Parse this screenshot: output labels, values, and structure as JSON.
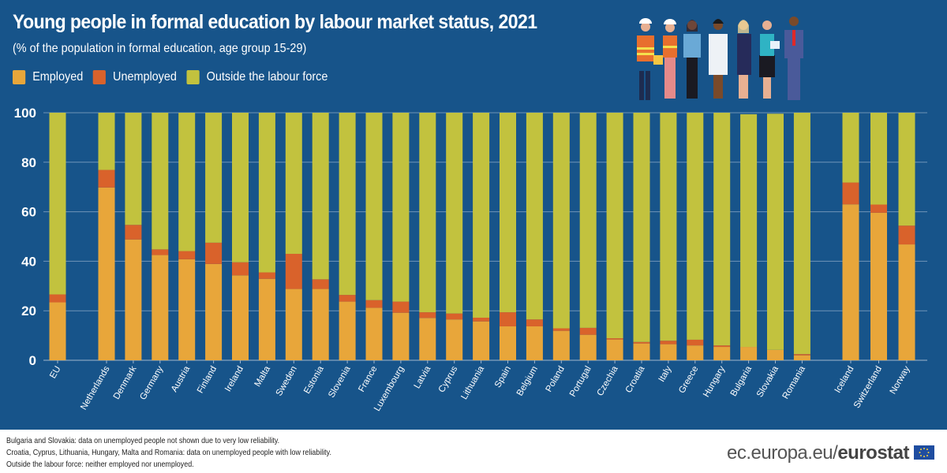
{
  "title": "Young people in formal education by labour market status, 2021",
  "subtitle": "(% of the population in formal education, age group 15-29)",
  "footer": {
    "notes": [
      "Bulgaria and Slovakia: data on unemployed people not shown due to very low reliability.",
      "Croatia, Cyprus, Lithuania, Hungary, Malta and Romania: data on unemployed people with low reliability.",
      "Outside the labour force: neither employed nor unemployed."
    ],
    "brand_prefix": "ec.europa.eu/",
    "brand_name": "eurostat"
  },
  "colors": {
    "employed": "#e8a63a",
    "unemployed": "#d9622b",
    "outside": "#c2c23e",
    "background": "#17548a",
    "grid": "#6f93b7"
  },
  "chart_data": {
    "type": "bar",
    "stacked": true,
    "title": "Young people in formal education by labour market status, 2021",
    "subtitle": "(% of the population in formal education, age group 15-29)",
    "ylim": [
      0,
      100
    ],
    "yticks": [
      0,
      20,
      40,
      60,
      80,
      100
    ],
    "grid": true,
    "legend_position": "top-left",
    "groups": [
      [
        "EU"
      ],
      [
        "Netherlands",
        "Denmark",
        "Germany",
        "Austria",
        "Finland",
        "Ireland",
        "Malta",
        "Sweden",
        "Estonia",
        "Slovenia",
        "France",
        "Luxembourg",
        "Latvia",
        "Cyprus",
        "Lithuania",
        "Spain",
        "Belgium",
        "Poland",
        "Portugal",
        "Czechia",
        "Croatia",
        "Italy",
        "Greece",
        "Hungary",
        "Bulgaria",
        "Slovakia",
        "Romania"
      ],
      [
        "Iceland",
        "Switzerland",
        "Norway"
      ]
    ],
    "categories": [
      "EU",
      "Netherlands",
      "Denmark",
      "Germany",
      "Austria",
      "Finland",
      "Ireland",
      "Malta",
      "Sweden",
      "Estonia",
      "Slovenia",
      "France",
      "Luxembourg",
      "Latvia",
      "Cyprus",
      "Lithuania",
      "Spain",
      "Belgium",
      "Poland",
      "Portugal",
      "Czechia",
      "Croatia",
      "Italy",
      "Greece",
      "Hungary",
      "Bulgaria",
      "Slovakia",
      "Romania",
      "Iceland",
      "Switzerland",
      "Norway"
    ],
    "series": [
      {
        "name": "Employed",
        "key": "employed",
        "values": [
          23.4,
          69.8,
          48.8,
          42.5,
          40.8,
          38.9,
          34.3,
          32.9,
          28.8,
          28.8,
          23.7,
          21.2,
          19.2,
          17.1,
          16.5,
          15.7,
          13.7,
          13.7,
          11.9,
          10.3,
          8.4,
          6.8,
          6.5,
          6.0,
          5.4,
          5.4,
          4.2,
          2.0,
          63.0,
          59.6,
          46.8
        ]
      },
      {
        "name": "Unemployed",
        "key": "unemployed",
        "values": [
          3.2,
          7.1,
          5.9,
          2.3,
          3.3,
          8.6,
          5.3,
          2.6,
          14.2,
          3.9,
          2.7,
          3.1,
          4.5,
          2.3,
          2.4,
          1.5,
          5.7,
          2.8,
          1.0,
          2.8,
          0.5,
          0.6,
          1.4,
          2.3,
          0.6,
          null,
          null,
          0.5,
          8.8,
          3.3,
          7.6
        ]
      },
      {
        "name": "Outside the labour force",
        "key": "outside",
        "values": [
          73.4,
          23.1,
          45.3,
          55.2,
          55.9,
          52.5,
          60.4,
          64.5,
          57.0,
          67.3,
          73.6,
          75.7,
          76.3,
          80.6,
          81.1,
          82.8,
          80.6,
          83.5,
          87.1,
          86.9,
          91.1,
          92.6,
          92.1,
          91.7,
          94.0,
          94.0,
          95.4,
          97.5,
          28.2,
          37.1,
          45.6
        ]
      }
    ]
  }
}
